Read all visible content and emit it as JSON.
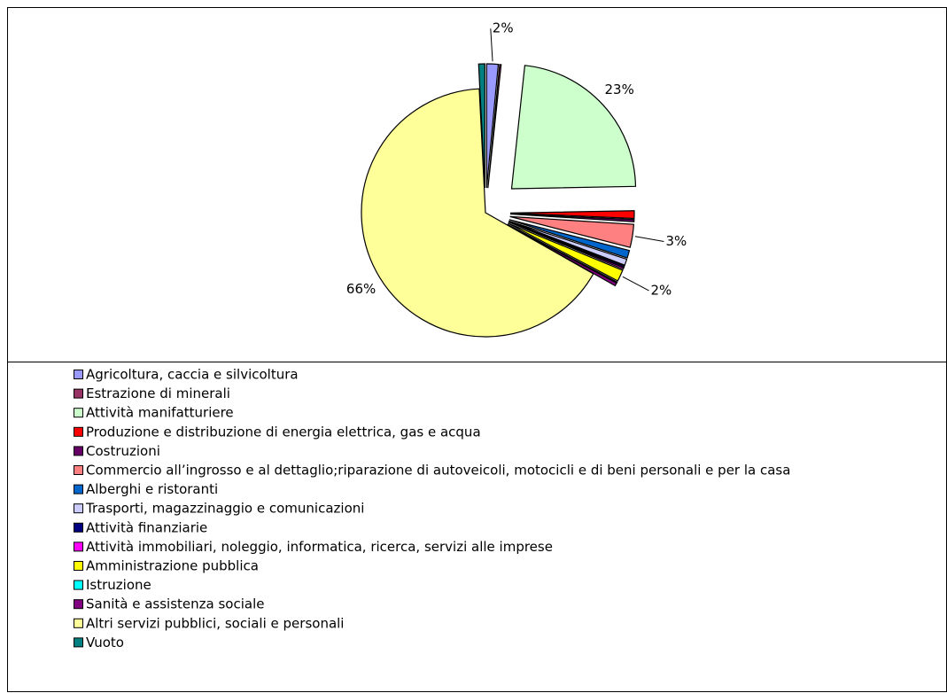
{
  "chart_data": {
    "type": "pie",
    "categories": [
      "Agricoltura, caccia e silvicoltura",
      "Estrazione di minerali",
      "Attività manifatturiere",
      "Produzione e distribuzione di energia elettrica, gas e acqua",
      "Costruzioni",
      "Commercio all’ingrosso e al dettaglio;riparazione di autoveicoli, motocicli e di beni personali e per la casa",
      "Alberghi e ristoranti",
      "Trasporti, magazzinaggio e comunicazioni",
      "Attività finanziarie",
      "Attività immobiliari, noleggio, informatica, ricerca, servizi alle imprese",
      "Amministrazione pubblica",
      "Istruzione",
      "Sanità e assistenza sociale",
      "Altri servizi pubblici, sociali e personali",
      "Vuoto"
    ],
    "values": [
      1.5,
      0.2,
      23,
      1,
      0.3,
      3,
      1,
      0.8,
      0.2,
      0.2,
      1.5,
      0.1,
      0.4,
      66,
      0.8
    ],
    "value_labels": [
      "2%",
      null,
      "23%",
      null,
      null,
      "3%",
      null,
      null,
      null,
      null,
      "2%",
      null,
      null,
      "66%",
      null
    ],
    "colors": [
      "#9999ff",
      "#993366",
      "#ccffcc",
      "#ff0000",
      "#660066",
      "#ff8080",
      "#0066cc",
      "#ccccff",
      "#000080",
      "#ff00ff",
      "#ffff00",
      "#00ffff",
      "#800080",
      "#ffff99",
      "#008080"
    ],
    "legend": "bottom"
  }
}
